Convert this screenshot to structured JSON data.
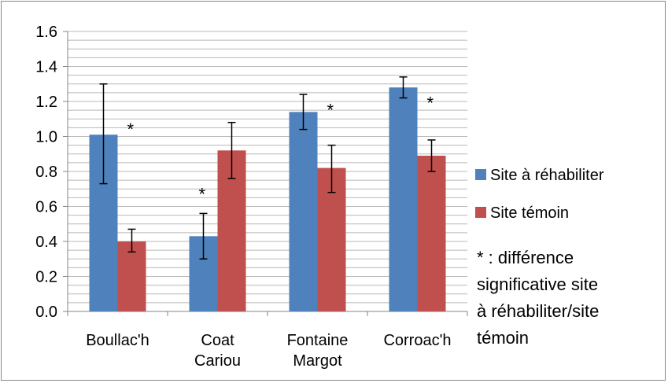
{
  "chart_data": {
    "type": "bar",
    "categories": [
      "Boullac'h",
      "Coat Cariou",
      "Fontaine Margot",
      "Corroac'h"
    ],
    "category_lines": [
      [
        "Boullac'h"
      ],
      [
        "Coat",
        "Cariou"
      ],
      [
        "Fontaine",
        "Margot"
      ],
      [
        "Corroac'h"
      ]
    ],
    "series": [
      {
        "name": "Site à réhabiliter",
        "color": "#4F81BD",
        "values": [
          1.01,
          0.43,
          1.14,
          1.28
        ],
        "error_low": [
          0.73,
          0.3,
          1.04,
          1.22
        ],
        "error_high": [
          1.3,
          0.56,
          1.24,
          1.34
        ]
      },
      {
        "name": "Site témoin",
        "color": "#C0504D",
        "values": [
          0.4,
          0.92,
          0.82,
          0.89
        ],
        "error_low": [
          0.34,
          0.76,
          0.68,
          0.8
        ],
        "error_high": [
          0.47,
          1.08,
          0.95,
          0.98
        ]
      }
    ],
    "significance_markers": [
      {
        "category": "Boullac'h",
        "text": "*",
        "y": 1.07,
        "side": "right"
      },
      {
        "category": "Coat Cariou",
        "text": "*",
        "y": 0.7,
        "side": "left"
      },
      {
        "category": "Fontaine Margot",
        "text": "*",
        "y": 1.18,
        "side": "right"
      },
      {
        "category": "Corroac'h",
        "text": "*",
        "y": 1.22,
        "side": "right"
      }
    ],
    "ylim": [
      0,
      1.6
    ],
    "yticks": [
      "0.0",
      "0.2",
      "0.4",
      "0.6",
      "0.8",
      "1.0",
      "1.2",
      "1.4",
      "1.6"
    ],
    "minor_step": 0.05,
    "grid": true,
    "legend_position": "right",
    "note_lines": [
      "* : différence",
      "significative site",
      "à réhabiliter/site",
      "témoin"
    ],
    "title": "",
    "xlabel": "",
    "ylabel": ""
  }
}
